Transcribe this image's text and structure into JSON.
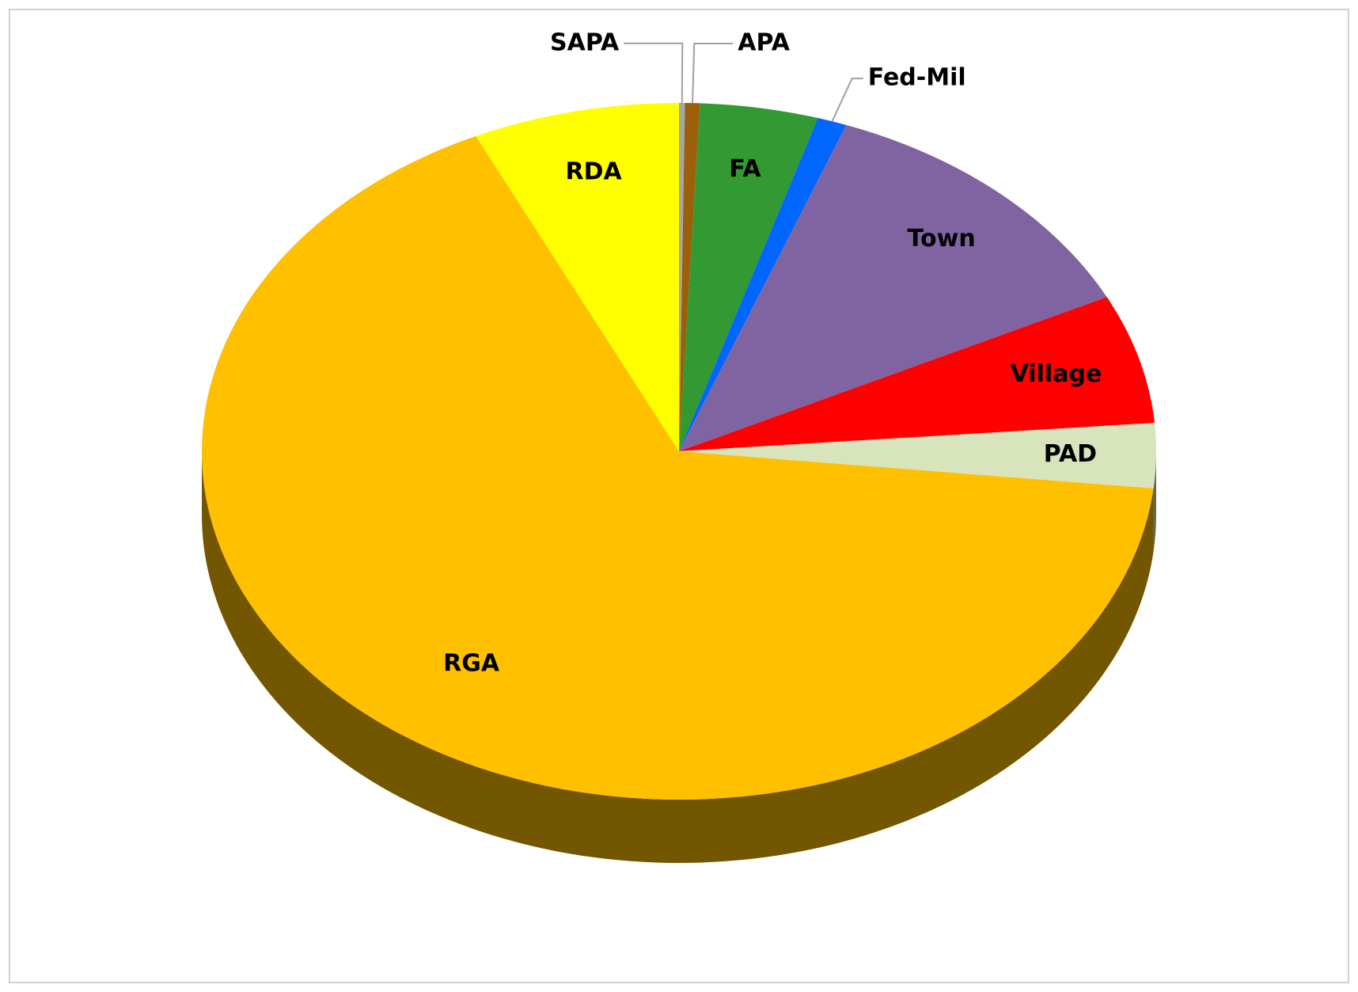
{
  "chart_data": {
    "type": "pie",
    "categories": [
      "SAPA",
      "APA",
      "FA",
      "Fed-Mil",
      "Town",
      "Village",
      "PAD",
      "RGA",
      "RDA"
    ],
    "values": [
      0.2,
      0.5,
      4,
      1,
      12,
      6,
      3,
      66.3,
      7
    ],
    "colors": [
      "#a6a6a6",
      "#9c5f0a",
      "#339933",
      "#0066ff",
      "#8064a2",
      "#ff0000",
      "#d8e4bc",
      "#ffc000",
      "#ffff00"
    ]
  }
}
